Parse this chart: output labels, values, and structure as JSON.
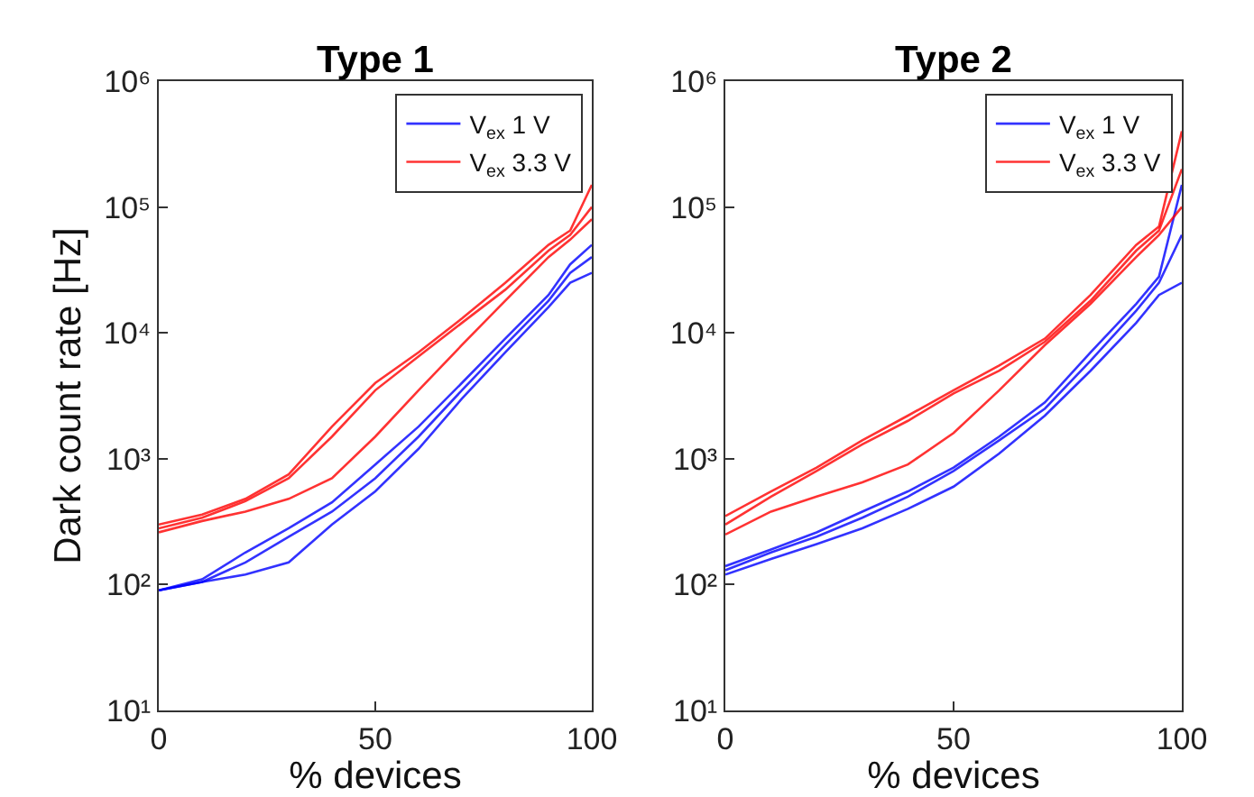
{
  "chart_data": [
    {
      "type": "line",
      "title": "Type 1",
      "xlabel": "% devices",
      "ylabel": "Dark count rate [Hz]",
      "log": "y",
      "grid": false,
      "legend": "top right",
      "line_style": "solid",
      "marker": "none",
      "x": [
        0,
        10,
        20,
        30,
        40,
        50,
        60,
        70,
        80,
        90,
        95,
        100
      ],
      "xlim": [
        0,
        100
      ],
      "xticks": [
        0,
        50,
        100
      ],
      "ylim": [
        10,
        1000000
      ],
      "yticks": [
        {
          "value": 10,
          "label": "10¹"
        },
        {
          "value": 100,
          "label": "10²"
        },
        {
          "value": 1000,
          "label": "10³"
        },
        {
          "value": 10000,
          "label": "10⁴"
        },
        {
          "value": 100000,
          "label": "10⁵"
        },
        {
          "value": 1000000,
          "label": "10⁶"
        }
      ],
      "series": [
        {
          "name": "V$_{ex}$ 1 V",
          "color": "#0000ff",
          "values": [
            90,
            110,
            180,
            280,
            450,
            900,
            1800,
            4000,
            9000,
            20000,
            35000,
            50000
          ]
        },
        {
          "color": "#0000ff",
          "values": [
            90,
            105,
            150,
            240,
            380,
            700,
            1500,
            3500,
            8000,
            18000,
            30000,
            40000
          ]
        },
        {
          "color": "#0000ff",
          "values": [
            90,
            105,
            120,
            150,
            300,
            550,
            1200,
            3000,
            7000,
            16000,
            25000,
            30000
          ]
        },
        {
          "name": "V$_{ex}$ 3.3 V",
          "color": "#ff0000",
          "values": [
            300,
            360,
            480,
            750,
            1800,
            4000,
            7000,
            13000,
            25000,
            50000,
            65000,
            150000
          ]
        },
        {
          "color": "#ff0000",
          "values": [
            280,
            340,
            460,
            700,
            1500,
            3500,
            6500,
            12000,
            22000,
            45000,
            60000,
            100000
          ]
        },
        {
          "color": "#ff0000",
          "values": [
            260,
            320,
            380,
            480,
            700,
            1500,
            3500,
            8000,
            18000,
            40000,
            55000,
            80000
          ]
        }
      ]
    },
    {
      "type": "line",
      "title": "Type 2",
      "xlabel": "% devices",
      "log": "y",
      "grid": false,
      "legend": "top right",
      "line_style": "solid",
      "marker": "none",
      "x": [
        0,
        10,
        20,
        30,
        40,
        50,
        60,
        70,
        80,
        90,
        95,
        100
      ],
      "xlim": [
        0,
        100
      ],
      "xticks": [
        0,
        50,
        100
      ],
      "ylim": [
        10,
        1000000
      ],
      "yticks": [
        {
          "value": 10,
          "label": "10¹"
        },
        {
          "value": 100,
          "label": "10²"
        },
        {
          "value": 1000,
          "label": "10³"
        },
        {
          "value": 10000,
          "label": "10⁴"
        },
        {
          "value": 100000,
          "label": "10⁵"
        },
        {
          "value": 1000000,
          "label": "10⁶"
        }
      ],
      "series": [
        {
          "name": "V$_{ex}$ 1 V",
          "color": "#0000ff",
          "values": [
            140,
            190,
            260,
            380,
            550,
            850,
            1500,
            2800,
            7000,
            17000,
            28000,
            150000
          ]
        },
        {
          "color": "#0000ff",
          "values": [
            130,
            180,
            240,
            340,
            500,
            800,
            1400,
            2500,
            6000,
            15000,
            25000,
            60000
          ]
        },
        {
          "color": "#0000ff",
          "values": [
            120,
            160,
            210,
            280,
            400,
            600,
            1100,
            2200,
            5000,
            12000,
            20000,
            25000
          ]
        },
        {
          "name": "V$_{ex}$ 3.3 V",
          "color": "#ff0000",
          "values": [
            350,
            550,
            850,
            1400,
            2200,
            3500,
            5500,
            9000,
            20000,
            50000,
            70000,
            400000
          ]
        },
        {
          "color": "#ff0000",
          "values": [
            300,
            500,
            800,
            1300,
            2000,
            3300,
            5000,
            8500,
            18000,
            45000,
            65000,
            200000
          ]
        },
        {
          "color": "#ff0000",
          "values": [
            250,
            380,
            500,
            650,
            900,
            1600,
            3500,
            8000,
            17000,
            40000,
            60000,
            100000
          ]
        }
      ]
    }
  ]
}
